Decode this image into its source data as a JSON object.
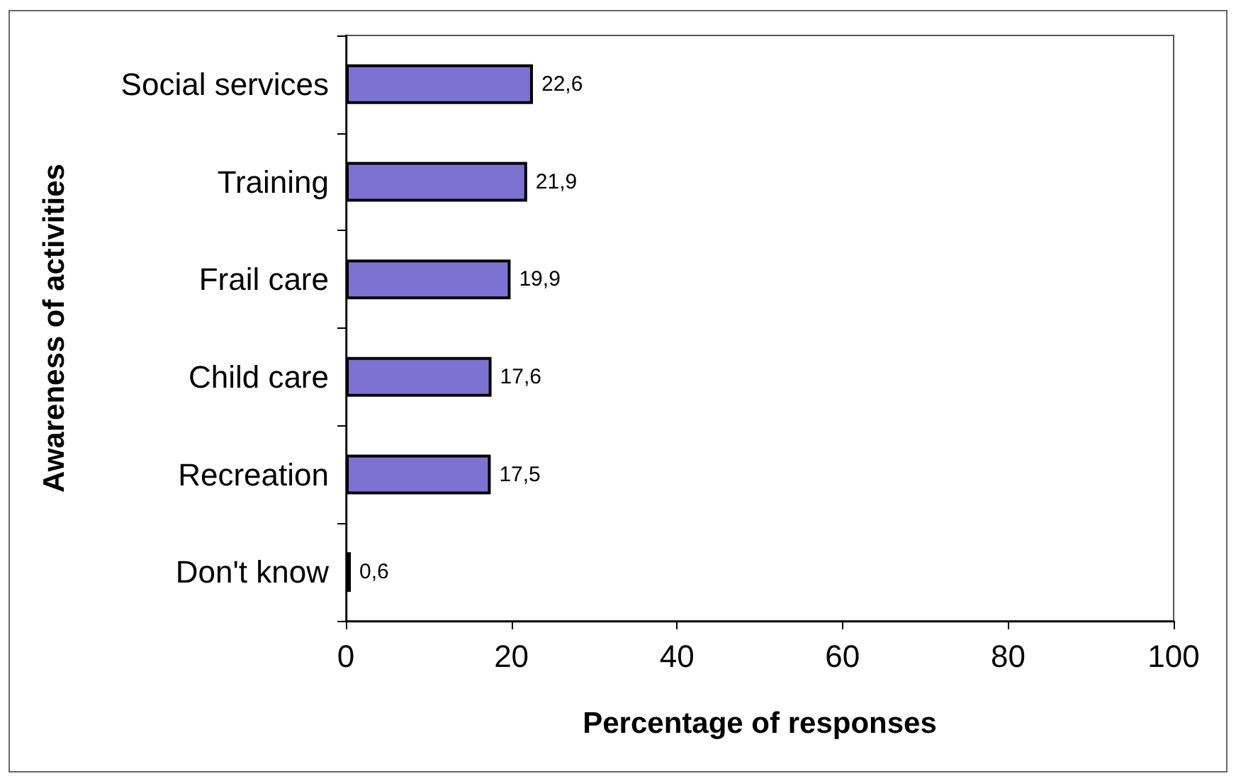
{
  "chart_data": {
    "type": "bar",
    "orientation": "horizontal",
    "xlabel": "Percentage of responses",
    "ylabel": "Awareness of activities",
    "categories": [
      "Social services",
      "Training",
      "Frail care",
      "Child care",
      "Recreation",
      "Don't know"
    ],
    "values": [
      22.6,
      21.9,
      19.9,
      17.6,
      17.5,
      0.6
    ],
    "value_labels": [
      "22,6",
      "21,9",
      "19,9",
      "17,6",
      "17,5",
      "0,6"
    ],
    "color": "#7d72d2",
    "xlim": [
      0,
      100
    ],
    "xticks": [
      0,
      20,
      40,
      60,
      80,
      100
    ]
  }
}
